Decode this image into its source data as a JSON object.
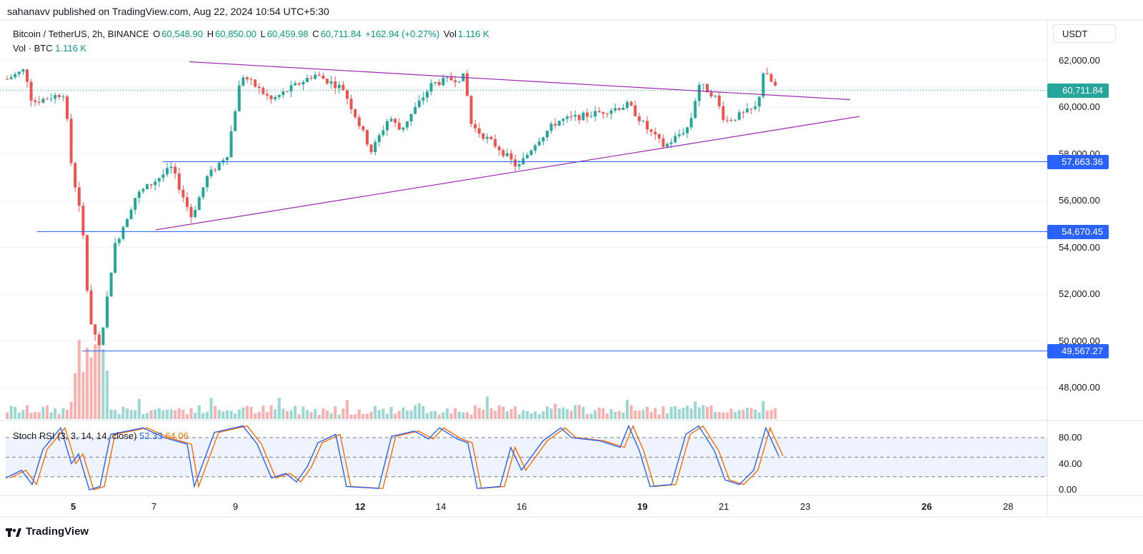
{
  "header": {
    "published": "sahanavv published on TradingView.com, Aug 22, 2024 10:54 UTC+5:30"
  },
  "legend": {
    "symbol": "Bitcoin / TetherUS, 2h, BINANCE",
    "o_key": "O",
    "o_val": "60,548.90",
    "h_key": "H",
    "h_val": "60,850.00",
    "l_key": "L",
    "l_val": "60,459.98",
    "c_key": "C",
    "c_val": "60,711.84",
    "change": "+162.94 (+0.27%)",
    "vol_key": "Vol",
    "vol_val": "1.116 K",
    "vol_line_key": "Vol · BTC",
    "vol_line_val": "1.116 K"
  },
  "currency_button": "USDT",
  "price_axis": [
    "62,000.00",
    "60,000.00",
    "58,000.00",
    "56,000.00",
    "54,000.00",
    "52,000.00",
    "50,000.00",
    "48,000.00"
  ],
  "price_tags": [
    {
      "label": "60,711.84",
      "color": "#26a69a"
    },
    {
      "label": "57,663.36",
      "color": "#2962ff"
    },
    {
      "label": "54,670.45",
      "color": "#2962ff"
    },
    {
      "label": "49,567.27",
      "color": "#2962ff"
    }
  ],
  "rsi": {
    "title": "Stoch RSI (3, 3, 14, 14, close)",
    "k_val": "52.33",
    "d_val": "64.06",
    "axis": [
      "80.00",
      "40.00",
      "0.00"
    ]
  },
  "x_axis": [
    {
      "label": "5",
      "bold": true
    },
    {
      "label": "7",
      "bold": false
    },
    {
      "label": "9",
      "bold": false
    },
    {
      "label": "12",
      "bold": true
    },
    {
      "label": "14",
      "bold": false
    },
    {
      "label": "16",
      "bold": false
    },
    {
      "label": "19",
      "bold": true
    },
    {
      "label": "21",
      "bold": false
    },
    {
      "label": "23",
      "bold": false
    },
    {
      "label": "26",
      "bold": true
    },
    {
      "label": "28",
      "bold": false
    }
  ],
  "footer": {
    "brand": "TradingView"
  },
  "colors": {
    "up": "#26a69a",
    "down": "#ef5350",
    "trend": "#9c27b0",
    "level": "#2962ff",
    "k": "#2962ff",
    "d": "#ff6d00"
  }
}
